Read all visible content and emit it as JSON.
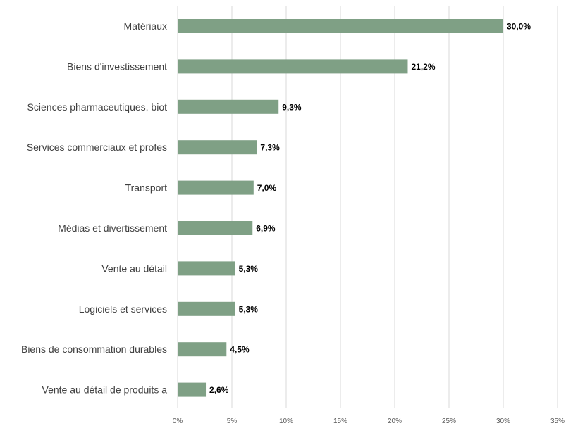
{
  "colors": {
    "bar": "#7fa085",
    "grid": "#d9d9d9"
  },
  "chart_data": {
    "type": "bar",
    "orientation": "horizontal",
    "title": "",
    "xlabel": "",
    "ylabel": "",
    "grid": "vertical",
    "legend": "none",
    "xlim": [
      0,
      35
    ],
    "ticks": [
      {
        "value": 0,
        "label": "0%"
      },
      {
        "value": 5,
        "label": "5%"
      },
      {
        "value": 10,
        "label": "10%"
      },
      {
        "value": 15,
        "label": "15%"
      },
      {
        "value": 20,
        "label": "20%"
      },
      {
        "value": 25,
        "label": "25%"
      },
      {
        "value": 30,
        "label": "30%"
      },
      {
        "value": 35,
        "label": "35%"
      }
    ],
    "categories": [
      "Matériaux",
      "Biens d'investissement",
      "Sciences pharmaceutiques, biot",
      "Services commerciaux et profes",
      "Transport",
      "Médias et divertissement",
      "Vente au détail",
      "Logiciels et services",
      "Biens de consommation durables",
      "Vente au détail de produits a"
    ],
    "values": [
      30.0,
      21.2,
      9.3,
      7.3,
      7.0,
      6.9,
      5.3,
      5.3,
      4.5,
      2.6
    ],
    "value_labels": [
      "30,0%",
      "21,2%",
      "9,3%",
      "7,3%",
      "7,0%",
      "6,9%",
      "5,3%",
      "5,3%",
      "4,5%",
      "2,6%"
    ]
  }
}
